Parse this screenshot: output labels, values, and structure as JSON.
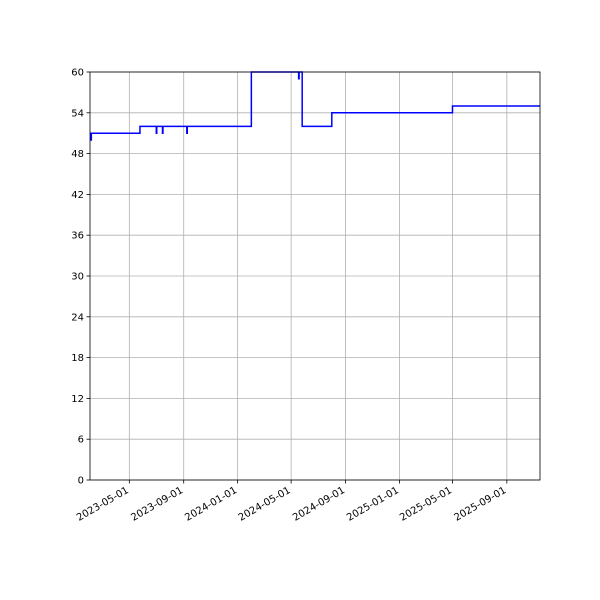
{
  "colors": {
    "series": "#0000ff",
    "grid": "#b0b0b0",
    "background": "#ffffff",
    "axis": "#000000"
  },
  "chart_data": {
    "type": "line",
    "title": "",
    "xlabel": "",
    "ylabel": "",
    "grid": true,
    "x_axis": {
      "kind": "date",
      "range": [
        "2023-02-01",
        "2025-11-15"
      ],
      "ticks": [
        "2023-05-01",
        "2023-09-01",
        "2024-01-01",
        "2024-05-01",
        "2024-09-01",
        "2025-01-01",
        "2025-05-01",
        "2025-09-01"
      ]
    },
    "y_axis": {
      "range": [
        0,
        60
      ],
      "ticks": [
        0,
        6,
        12,
        18,
        24,
        30,
        36,
        42,
        48,
        54,
        60
      ]
    },
    "series": [
      {
        "line_style": "step",
        "points": [
          {
            "x": "2023-02-01",
            "y": 51
          },
          {
            "x": "2023-02-03",
            "y": 51
          },
          {
            "x": "2023-02-03",
            "y": 50
          },
          {
            "x": "2023-02-04",
            "y": 50
          },
          {
            "x": "2023-02-04",
            "y": 51
          },
          {
            "x": "2023-05-25",
            "y": 51
          },
          {
            "x": "2023-05-25",
            "y": 52
          },
          {
            "x": "2023-07-01",
            "y": 52
          },
          {
            "x": "2023-07-01",
            "y": 51
          },
          {
            "x": "2023-07-02",
            "y": 51
          },
          {
            "x": "2023-07-02",
            "y": 52
          },
          {
            "x": "2023-07-15",
            "y": 52
          },
          {
            "x": "2023-07-15",
            "y": 51
          },
          {
            "x": "2023-07-16",
            "y": 51
          },
          {
            "x": "2023-07-16",
            "y": 52
          },
          {
            "x": "2023-09-08",
            "y": 52
          },
          {
            "x": "2023-09-08",
            "y": 51
          },
          {
            "x": "2023-09-09",
            "y": 51
          },
          {
            "x": "2023-09-09",
            "y": 52
          },
          {
            "x": "2024-02-01",
            "y": 52
          },
          {
            "x": "2024-02-01",
            "y": 60
          },
          {
            "x": "2024-05-18",
            "y": 60
          },
          {
            "x": "2024-05-18",
            "y": 59
          },
          {
            "x": "2024-05-19",
            "y": 59
          },
          {
            "x": "2024-05-19",
            "y": 60
          },
          {
            "x": "2024-05-26",
            "y": 60
          },
          {
            "x": "2024-05-26",
            "y": 52
          },
          {
            "x": "2024-08-01",
            "y": 52
          },
          {
            "x": "2024-08-01",
            "y": 54
          },
          {
            "x": "2025-05-01",
            "y": 54
          },
          {
            "x": "2025-05-01",
            "y": 55
          },
          {
            "x": "2025-11-15",
            "y": 55
          }
        ]
      }
    ]
  }
}
